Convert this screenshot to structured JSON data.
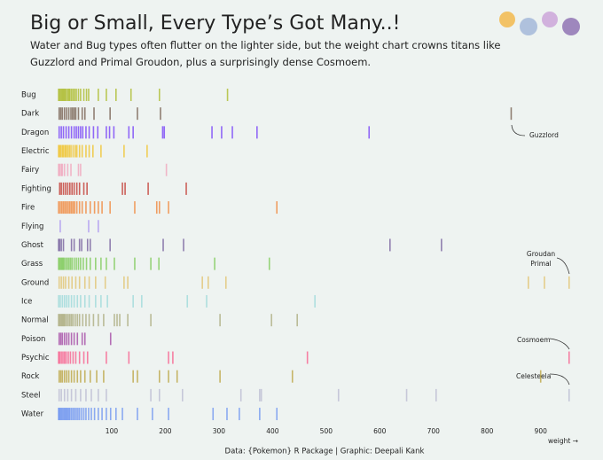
{
  "chart_data": {
    "type": "strip",
    "title": "Big or Small, Every Type’s Got Many..!",
    "subtitle": "Water and Bug types often flutter on the lighter side, but the weight chart crowns titans like Guzzlord and Primal Groudon, plus a surprisingly dense Cosmoem.",
    "caption": "Data: {Pokemon} R Package | Graphic: Deepali Kank",
    "x_label": "weight →",
    "xlim": [
      0,
      960
    ],
    "xticks": [
      100,
      200,
      300,
      400,
      500,
      600,
      700,
      800,
      900
    ],
    "annotations": [
      {
        "text": "Guzzlord"
      },
      {
        "text": [
          "Groudan",
          "Primal"
        ]
      },
      {
        "text": "Cosmoem"
      },
      {
        "text": "Celesteela"
      }
    ],
    "series": [
      {
        "name": "Bug",
        "color": "#a8b820",
        "values": [
          1,
          3,
          5,
          7,
          9,
          11,
          13,
          15,
          18,
          20,
          22,
          25,
          28,
          31,
          34,
          38,
          42,
          48,
          53,
          57,
          75,
          90,
          108,
          136,
          189,
          316
        ]
      },
      {
        "name": "Dark",
        "color": "#705848",
        "values": [
          2,
          5,
          8,
          12,
          16,
          20,
          24,
          27,
          30,
          33,
          38,
          45,
          50,
          67,
          97,
          148,
          191,
          845
        ]
      },
      {
        "name": "Dragon",
        "color": "#7038f8",
        "values": [
          2,
          6,
          10,
          15,
          20,
          25,
          30,
          34,
          38,
          42,
          46,
          52,
          58,
          66,
          74,
          90,
          96,
          104,
          132,
          140,
          195,
          198,
          287,
          305,
          325,
          371,
          580
        ]
      },
      {
        "name": "Electric",
        "color": "#f0c020",
        "values": [
          1,
          3,
          5,
          8,
          10,
          13,
          15,
          18,
          21,
          24,
          28,
          32,
          35,
          40,
          45,
          52,
          58,
          65,
          80,
          123,
          166
        ]
      },
      {
        "name": "Fairy",
        "color": "#f0a0b8",
        "values": [
          1,
          3,
          6,
          8,
          12,
          18,
          24,
          38,
          42,
          202
        ]
      },
      {
        "name": "Fighting",
        "color": "#c03028",
        "values": [
          3,
          6,
          10,
          14,
          18,
          22,
          26,
          30,
          35,
          40,
          48,
          54,
          120,
          125,
          168,
          239
        ]
      },
      {
        "name": "Fire",
        "color": "#f08030",
        "values": [
          1,
          4,
          7,
          10,
          13,
          16,
          19,
          22,
          25,
          28,
          31,
          35,
          40,
          45,
          52,
          60,
          68,
          75,
          82,
          97,
          143,
          184,
          189,
          206,
          408
        ]
      },
      {
        "name": "Flying",
        "color": "#a890f0",
        "values": [
          4,
          57,
          75
        ]
      },
      {
        "name": "Ghost",
        "color": "#705898",
        "values": [
          1,
          3,
          6,
          10,
          25,
          30,
          40,
          44,
          55,
          60,
          97,
          196,
          234,
          619,
          715
        ]
      },
      {
        "name": "Grass",
        "color": "#78c850",
        "values": [
          1,
          3,
          5,
          7,
          9,
          11,
          14,
          17,
          20,
          23,
          26,
          30,
          34,
          38,
          42,
          47,
          53,
          60,
          70,
          80,
          90,
          105,
          143,
          173,
          188,
          292,
          394
        ]
      },
      {
        "name": "Ground",
        "color": "#e0c068",
        "values": [
          2,
          6,
          10,
          14,
          20,
          26,
          33,
          40,
          50,
          58,
          70,
          88,
          123,
          130,
          269,
          280,
          313,
          877,
          907,
          953
        ]
      },
      {
        "name": "Ice",
        "color": "#98d8d8",
        "values": [
          1,
          4,
          8,
          12,
          16,
          20,
          25,
          30,
          36,
          42,
          50,
          58,
          70,
          80,
          92,
          140,
          156,
          241,
          277,
          479
        ]
      },
      {
        "name": "Normal",
        "color": "#a8a878",
        "values": [
          1,
          3,
          5,
          7,
          9,
          11,
          13,
          16,
          19,
          22,
          25,
          28,
          32,
          36,
          40,
          46,
          52,
          58,
          66,
          75,
          85,
          105,
          110,
          115,
          130,
          173,
          302,
          398,
          446
        ]
      },
      {
        "name": "Poison",
        "color": "#a040a0",
        "values": [
          2,
          5,
          8,
          12,
          16,
          20,
          25,
          30,
          36,
          45,
          50,
          98
        ]
      },
      {
        "name": "Psychic",
        "color": "#f85888",
        "values": [
          1,
          3,
          6,
          9,
          12,
          15,
          19,
          23,
          28,
          33,
          40,
          48,
          55,
          90,
          132,
          206,
          214,
          465,
          953
        ]
      },
      {
        "name": "Rock",
        "color": "#b8a038",
        "values": [
          2,
          5,
          8,
          12,
          16,
          20,
          25,
          30,
          36,
          42,
          50,
          60,
          72,
          85,
          140,
          148,
          189,
          206,
          222,
          302,
          437,
          900
        ]
      },
      {
        "name": "Steel",
        "color": "#b8b8d0",
        "values": [
          2,
          6,
          12,
          18,
          25,
          33,
          42,
          52,
          62,
          75,
          90,
          173,
          189,
          232,
          341,
          376,
          379,
          523,
          650,
          705,
          953
        ]
      },
      {
        "name": "Water",
        "color": "#6890f0",
        "values": [
          1,
          2,
          4,
          6,
          8,
          10,
          12,
          14,
          16,
          18,
          20,
          22,
          25,
          28,
          31,
          34,
          37,
          40,
          44,
          48,
          52,
          57,
          62,
          68,
          75,
          82,
          90,
          98,
          108,
          120,
          148,
          176,
          206,
          289,
          315,
          338,
          376,
          408
        ]
      }
    ]
  }
}
